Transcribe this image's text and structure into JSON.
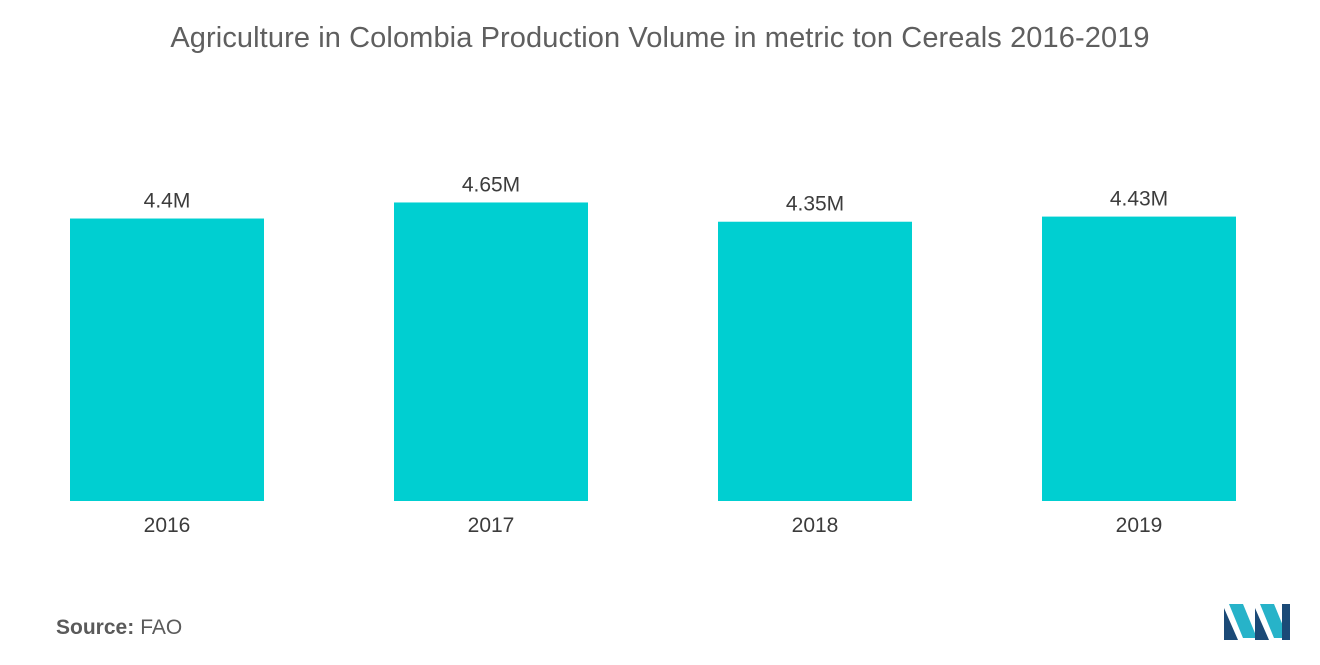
{
  "chart_data": {
    "type": "bar",
    "title": "Agriculture in Colombia Production Volume in metric ton Cereals 2016-2019",
    "categories": [
      "2016",
      "2017",
      "2018",
      "2019"
    ],
    "values": [
      4.4,
      4.65,
      4.35,
      4.43
    ],
    "data_labels": [
      "4.4M",
      "4.65M",
      "4.35M",
      "4.43M"
    ],
    "unit": "M metric ton",
    "xlabel": "",
    "ylabel": "",
    "grid": false,
    "legend": "none",
    "bar_color": "#00cfd1"
  },
  "source": {
    "label": "Source:",
    "value": "FAO"
  },
  "logo": {
    "icon": "mordor-intelligence-logo-icon",
    "colors": [
      "#1b4a77",
      "#27b3c9"
    ]
  }
}
